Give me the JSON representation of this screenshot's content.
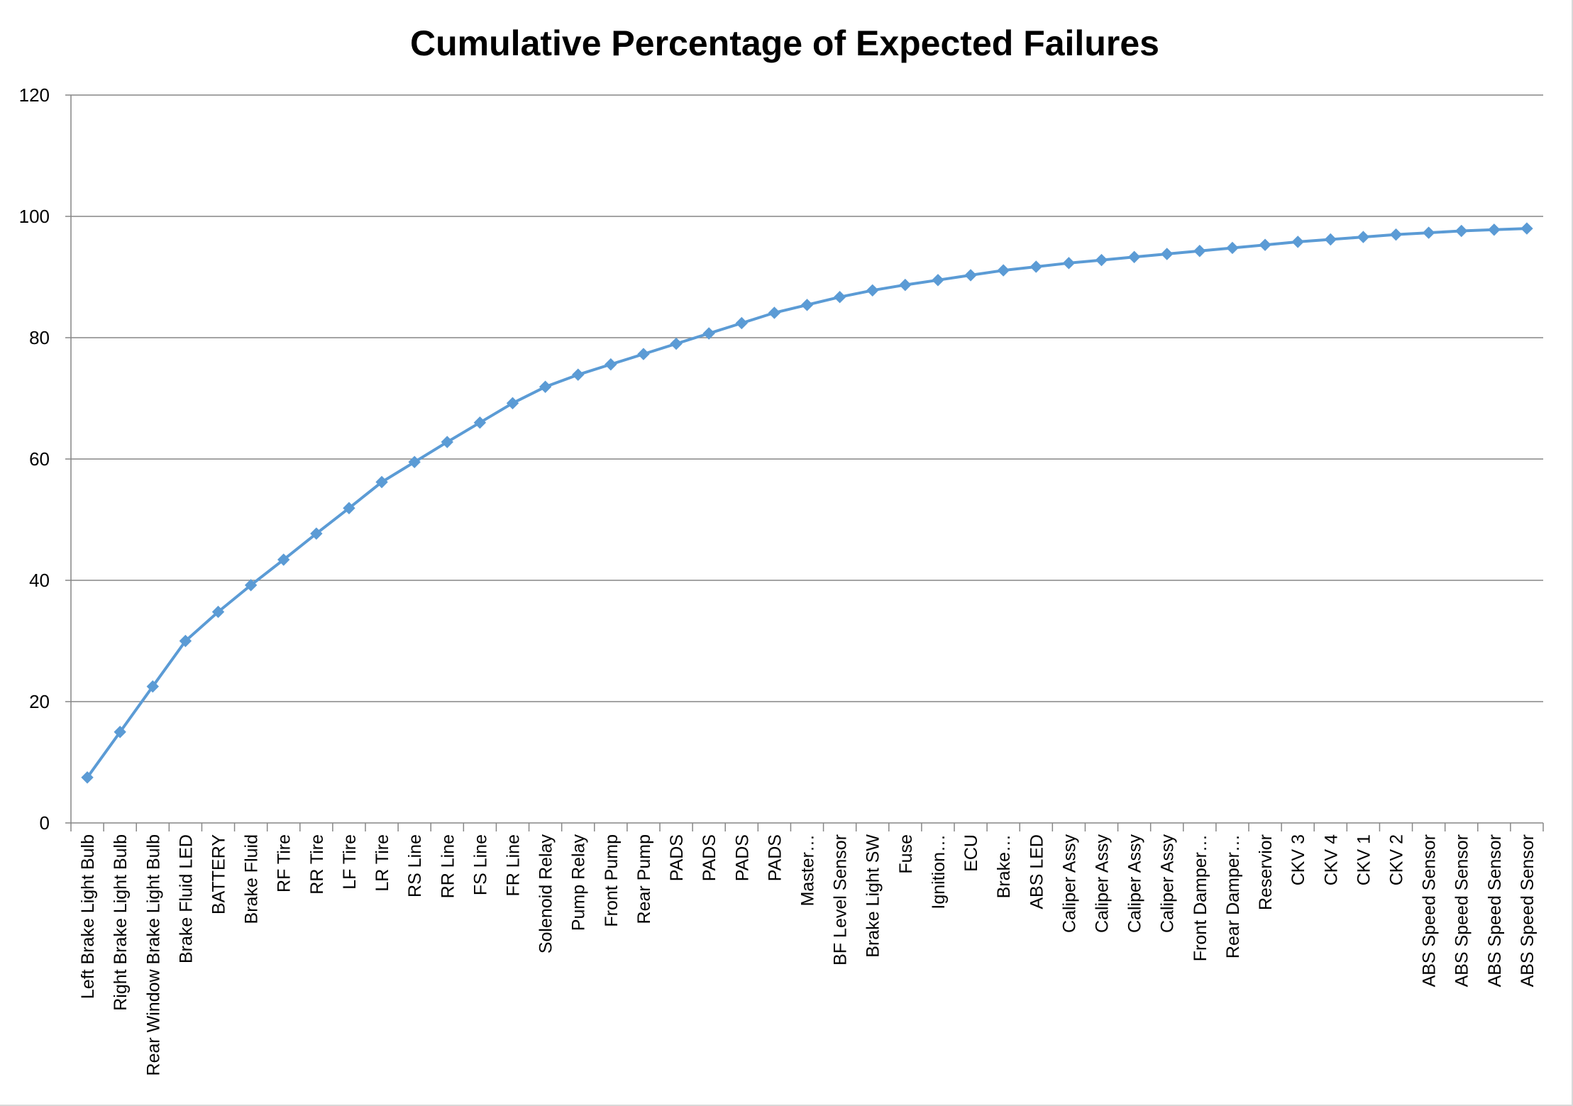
{
  "chart_data": {
    "type": "line",
    "title": "Cumulative Percentage of Expected Failures",
    "xlabel": "",
    "ylabel": "",
    "ylim": [
      0,
      120
    ],
    "yticks": [
      "0",
      "20",
      "40",
      "60",
      "80",
      "100",
      "120"
    ],
    "grid": true,
    "legend": "none",
    "series_color": "#5b9bd5",
    "gridline_color": "#868686",
    "categories": [
      "Left Brake Light Bulb",
      "Right Brake Light Bulb",
      "Rear Window Brake Light Bulb",
      "Brake Fluid LED",
      "BATTERY",
      "Brake Fluid",
      "RF Tire",
      "RR Tire",
      "LF Tire",
      "LR Tire",
      "RS Line",
      "RR Line",
      "FS Line",
      "FR Line",
      "Solenoid Relay",
      "Pump Relay",
      "Front Pump",
      "Rear Pump",
      "PADS",
      "PADS",
      "PADS",
      "PADS",
      "Master…",
      "BF Level Sensor",
      "Brake Light SW",
      "Fuse",
      "Ignition…",
      "ECU",
      "Brake…",
      "ABS LED",
      "Caliper Assy",
      "Caliper Assy",
      "Caliper Assy",
      "Caliper Assy",
      "Front Damper…",
      "Rear Damper…",
      "Reservior",
      "CKV 3",
      "CKV 4",
      "CKV 1",
      "CKV 2",
      "ABS Speed Sensor",
      "ABS Speed Sensor",
      "ABS Speed Sensor",
      "ABS Speed Sensor"
    ],
    "series": [
      {
        "values": [
          7.5,
          15.0,
          22.5,
          30.0,
          34.8,
          39.2,
          43.4,
          47.7,
          51.9,
          56.2,
          59.5,
          62.8,
          66.0,
          69.2,
          71.9,
          73.9,
          75.6,
          77.3,
          79.0,
          80.7,
          82.4,
          84.1,
          85.4,
          86.7,
          87.8,
          88.7,
          89.5,
          90.3,
          91.1,
          91.7,
          92.3,
          92.8,
          93.3,
          93.8,
          94.3,
          94.8,
          95.3,
          95.8,
          96.2,
          96.6,
          97.0,
          97.3,
          97.6,
          97.8,
          98.0
        ]
      }
    ]
  }
}
